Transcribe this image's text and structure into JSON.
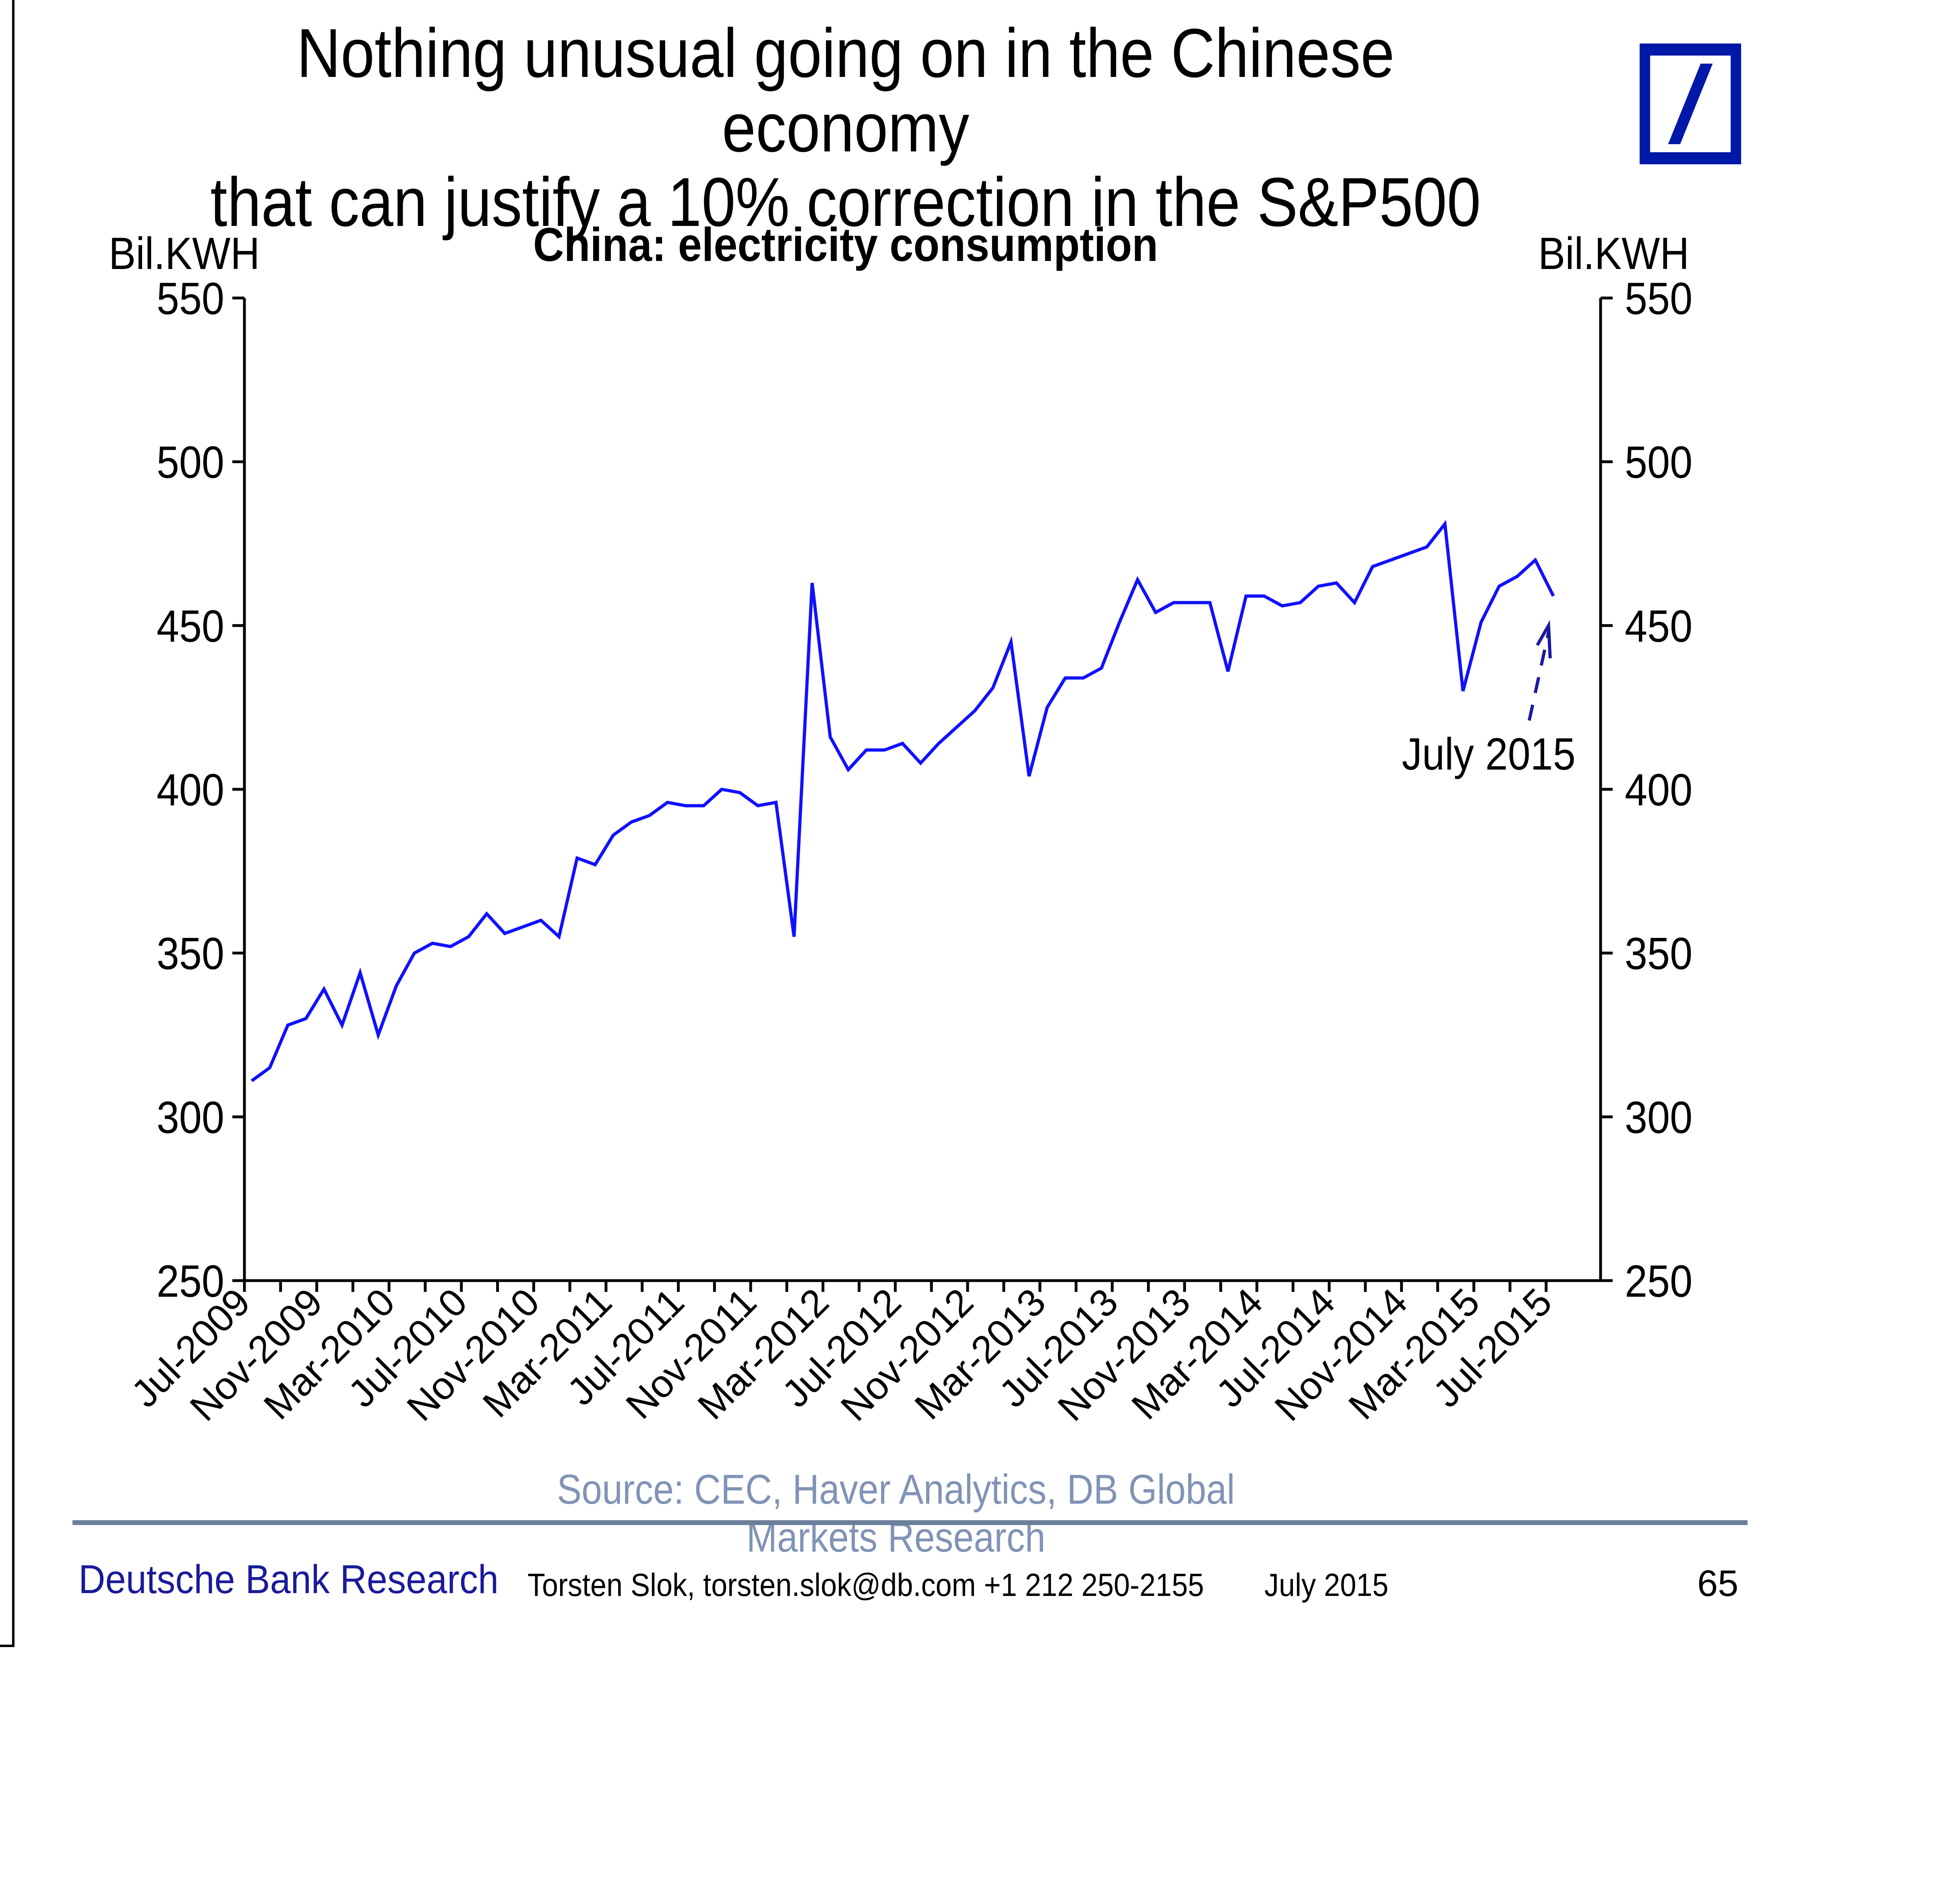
{
  "page": {
    "title_line1": "Nothing unusual going on in the Chinese economy",
    "title_line2": "that can justify a 10% correction in the S&P500",
    "logo": "deutsche-bank-slash-logo",
    "source": "Source: CEC, Haver Analytics, DB Global Markets Research",
    "footer": {
      "brand": "Deutsche Bank Research",
      "author": "Torsten Slok, torsten.slok@db.com  +1 212 250-2155",
      "date": "July 2015",
      "page_number": "65"
    }
  },
  "colors": {
    "line": "#1010ff",
    "brand_blue": "#0018a8",
    "source_text": "#8193b5",
    "footer_rule": "#6a7f9a"
  },
  "chart_data": {
    "type": "line",
    "title": "China: electricity consumption",
    "ylabel_left": "Bil.KWH",
    "ylabel_right": "Bil.KWH",
    "xlabel": "",
    "ylim": [
      250,
      550
    ],
    "yticks": [
      250,
      300,
      350,
      400,
      450,
      500,
      550
    ],
    "grid": false,
    "x_start": "Jul-2009",
    "x_end": "Jul-2015",
    "frequency": "monthly",
    "xtick_labels": [
      "Jul-2009",
      "Nov-2009",
      "Mar-2010",
      "Jul-2010",
      "Nov-2010",
      "Mar-2011",
      "Jul-2011",
      "Nov-2011",
      "Mar-2012",
      "Jul-2012",
      "Nov-2012",
      "Mar-2013",
      "Jul-2013",
      "Nov-2013",
      "Mar-2014",
      "Jul-2014",
      "Nov-2014",
      "Mar-2015",
      "Jul-2015"
    ],
    "series": [
      {
        "name": "China electricity consumption",
        "values": [
          311,
          315,
          328,
          330,
          339,
          328,
          344,
          325,
          340,
          350,
          353,
          352,
          355,
          362,
          356,
          358,
          360,
          355,
          379,
          377,
          386,
          390,
          392,
          396,
          395,
          395,
          400,
          399,
          395,
          396,
          355,
          463,
          416,
          406,
          412,
          412,
          414,
          408,
          414,
          419,
          424,
          431,
          445,
          404,
          425,
          434,
          434,
          437,
          451,
          464,
          454,
          457,
          457,
          457,
          436,
          459,
          459,
          456,
          457,
          462,
          463,
          457,
          468,
          470,
          472,
          474,
          481,
          430,
          451,
          462,
          465,
          470,
          459
        ]
      }
    ],
    "annotation": {
      "text": "July 2015",
      "arrow": "dashed",
      "points_to": "Jul-2015"
    }
  }
}
